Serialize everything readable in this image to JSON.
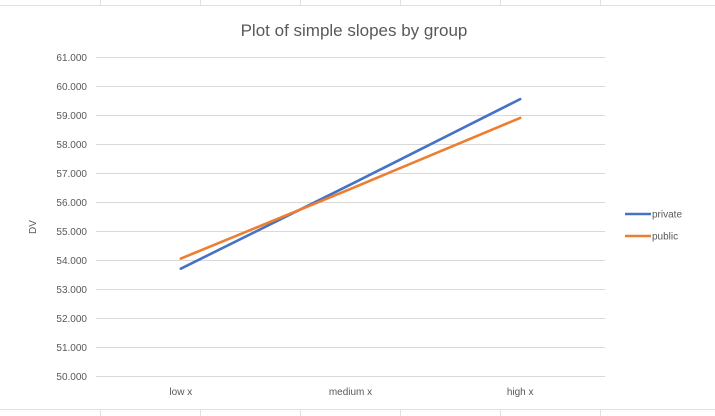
{
  "chart_data": {
    "type": "line",
    "title": "Plot of simple slopes by group",
    "xlabel": "",
    "ylabel": "DV",
    "categories": [
      "low x",
      "medium x",
      "high x"
    ],
    "ylim": [
      50,
      61
    ],
    "ytick_step": 1,
    "ytick_labels": [
      "50.000",
      "51.000",
      "52.000",
      "53.000",
      "54.000",
      "55.000",
      "56.000",
      "57.000",
      "58.000",
      "59.000",
      "60.000",
      "61.000"
    ],
    "grid": true,
    "legend_position": "right",
    "series": [
      {
        "name": "private",
        "values": [
          53.7,
          56.6,
          59.55
        ],
        "color": "#4472c4"
      },
      {
        "name": "public",
        "values": [
          54.05,
          56.45,
          58.9
        ],
        "color": "#ed7d31"
      }
    ]
  }
}
